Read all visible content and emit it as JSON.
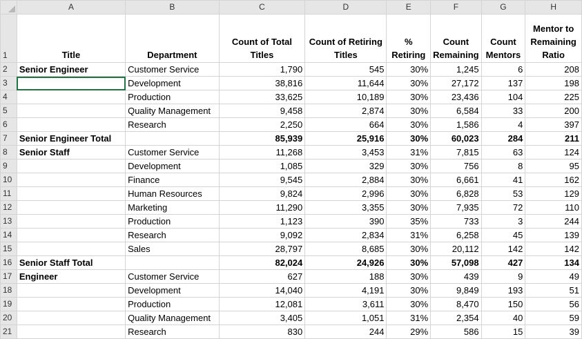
{
  "columns": [
    "A",
    "B",
    "C",
    "D",
    "E",
    "F",
    "G",
    "H"
  ],
  "header": {
    "row": "1",
    "cells": [
      "Title",
      "Department",
      "Count of Total Titles",
      "Count of Retiring Titles",
      "% Retiring",
      "Count Remaining",
      "Count Mentors",
      "Mentor to Remaining Ratio"
    ]
  },
  "rows": [
    {
      "row": "2",
      "bold": false,
      "cells": [
        "Senior Engineer",
        "Customer Service",
        "1,790",
        "545",
        "30%",
        "1,245",
        "6",
        "208"
      ]
    },
    {
      "row": "3",
      "bold": false,
      "cells": [
        "",
        "Development",
        "38,816",
        "11,644",
        "30%",
        "27,172",
        "137",
        "198"
      ]
    },
    {
      "row": "4",
      "bold": false,
      "cells": [
        "",
        "Production",
        "33,625",
        "10,189",
        "30%",
        "23,436",
        "104",
        "225"
      ]
    },
    {
      "row": "5",
      "bold": false,
      "cells": [
        "",
        "Quality Management",
        "9,458",
        "2,874",
        "30%",
        "6,584",
        "33",
        "200"
      ]
    },
    {
      "row": "6",
      "bold": false,
      "cells": [
        "",
        "Research",
        "2,250",
        "664",
        "30%",
        "1,586",
        "4",
        "397"
      ]
    },
    {
      "row": "7",
      "bold": true,
      "cells": [
        "Senior Engineer Total",
        "",
        "85,939",
        "25,916",
        "30%",
        "60,023",
        "284",
        "211"
      ]
    },
    {
      "row": "8",
      "bold": false,
      "cells": [
        "Senior Staff",
        "Customer Service",
        "11,268",
        "3,453",
        "31%",
        "7,815",
        "63",
        "124"
      ]
    },
    {
      "row": "9",
      "bold": false,
      "cells": [
        "",
        "Development",
        "1,085",
        "329",
        "30%",
        "756",
        "8",
        "95"
      ]
    },
    {
      "row": "10",
      "bold": false,
      "cells": [
        "",
        "Finance",
        "9,545",
        "2,884",
        "30%",
        "6,661",
        "41",
        "162"
      ]
    },
    {
      "row": "11",
      "bold": false,
      "cells": [
        "",
        "Human Resources",
        "9,824",
        "2,996",
        "30%",
        "6,828",
        "53",
        "129"
      ]
    },
    {
      "row": "12",
      "bold": false,
      "cells": [
        "",
        "Marketing",
        "11,290",
        "3,355",
        "30%",
        "7,935",
        "72",
        "110"
      ]
    },
    {
      "row": "13",
      "bold": false,
      "cells": [
        "",
        "Production",
        "1,123",
        "390",
        "35%",
        "733",
        "3",
        "244"
      ]
    },
    {
      "row": "14",
      "bold": false,
      "cells": [
        "",
        "Research",
        "9,092",
        "2,834",
        "31%",
        "6,258",
        "45",
        "139"
      ]
    },
    {
      "row": "15",
      "bold": false,
      "cells": [
        "",
        "Sales",
        "28,797",
        "8,685",
        "30%",
        "20,112",
        "142",
        "142"
      ]
    },
    {
      "row": "16",
      "bold": true,
      "cells": [
        "Senior Staff Total",
        "",
        "82,024",
        "24,926",
        "30%",
        "57,098",
        "427",
        "134"
      ]
    },
    {
      "row": "17",
      "bold": false,
      "cells": [
        "Engineer",
        "Customer Service",
        "627",
        "188",
        "30%",
        "439",
        "9",
        "49"
      ]
    },
    {
      "row": "18",
      "bold": false,
      "cells": [
        "",
        "Development",
        "14,040",
        "4,191",
        "30%",
        "9,849",
        "193",
        "51"
      ]
    },
    {
      "row": "19",
      "bold": false,
      "cells": [
        "",
        "Production",
        "12,081",
        "3,611",
        "30%",
        "8,470",
        "150",
        "56"
      ]
    },
    {
      "row": "20",
      "bold": false,
      "cells": [
        "",
        "Quality Management",
        "3,405",
        "1,051",
        "31%",
        "2,354",
        "40",
        "59"
      ]
    },
    {
      "row": "21",
      "bold": false,
      "cells": [
        "",
        "Research",
        "830",
        "244",
        "29%",
        "586",
        "15",
        "39"
      ]
    }
  ],
  "selected_cell": "A3"
}
